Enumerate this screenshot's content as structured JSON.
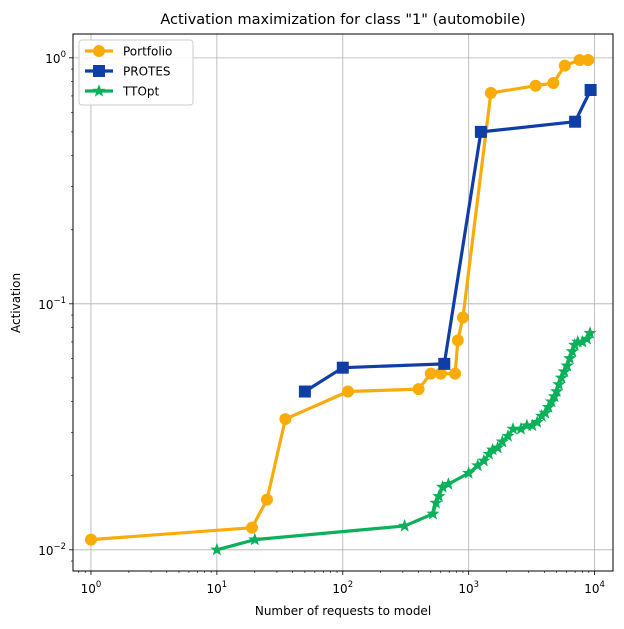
{
  "chart_data": {
    "type": "line",
    "title": "Activation maximization for class \"1\" (automobile)",
    "xlabel": "Number of requests to model",
    "ylabel": "Activation",
    "xscale": "log",
    "yscale": "log",
    "xlim": [
      0.72,
      14000
    ],
    "ylim": [
      0.0082,
      1.25
    ],
    "grid": true,
    "legend_position": "top-left",
    "x_ticks": [
      {
        "value": 1,
        "base": "10",
        "exp": "0"
      },
      {
        "value": 10,
        "base": "10",
        "exp": "1"
      },
      {
        "value": 100,
        "base": "10",
        "exp": "2"
      },
      {
        "value": 1000,
        "base": "10",
        "exp": "3"
      },
      {
        "value": 10000,
        "base": "10",
        "exp": "4"
      }
    ],
    "y_ticks": [
      {
        "value": 0.01,
        "base": "10",
        "exp": "−2"
      },
      {
        "value": 0.1,
        "base": "10",
        "exp": "−1"
      },
      {
        "value": 1,
        "base": "10",
        "exp": "0"
      }
    ],
    "series": [
      {
        "name": "Portfolio",
        "color": "#f9ac09",
        "marker": "circle",
        "points": [
          [
            1,
            0.011
          ],
          [
            19,
            0.0123
          ],
          [
            25,
            0.016
          ],
          [
            35,
            0.034
          ],
          [
            110,
            0.044
          ],
          [
            400,
            0.045
          ],
          [
            500,
            0.052
          ],
          [
            600,
            0.052
          ],
          [
            780,
            0.052
          ],
          [
            820,
            0.071
          ],
          [
            900,
            0.088
          ],
          [
            1500,
            0.72
          ],
          [
            3400,
            0.77
          ],
          [
            4700,
            0.79
          ],
          [
            5800,
            0.93
          ],
          [
            7600,
            0.98
          ],
          [
            8900,
            0.98
          ]
        ]
      },
      {
        "name": "PROTES",
        "color": "#0f3fa6",
        "marker": "square",
        "points": [
          [
            50,
            0.044
          ],
          [
            100,
            0.055
          ],
          [
            640,
            0.057
          ],
          [
            1250,
            0.5
          ],
          [
            7000,
            0.55
          ],
          [
            9300,
            0.74
          ]
        ]
      },
      {
        "name": "TTOpt",
        "color": "#0bb05a",
        "marker": "star",
        "points": [
          [
            10,
            0.01
          ],
          [
            20,
            0.011
          ],
          [
            310,
            0.0125
          ],
          [
            520,
            0.014
          ],
          [
            550,
            0.0155
          ],
          [
            580,
            0.0165
          ],
          [
            620,
            0.018
          ],
          [
            690,
            0.0185
          ],
          [
            1000,
            0.0205
          ],
          [
            1180,
            0.022
          ],
          [
            1320,
            0.023
          ],
          [
            1450,
            0.0245
          ],
          [
            1550,
            0.0255
          ],
          [
            1700,
            0.026
          ],
          [
            1850,
            0.0275
          ],
          [
            2050,
            0.029
          ],
          [
            2250,
            0.031
          ],
          [
            2600,
            0.031
          ],
          [
            2900,
            0.032
          ],
          [
            3200,
            0.032
          ],
          [
            3500,
            0.033
          ],
          [
            3800,
            0.035
          ],
          [
            4050,
            0.036
          ],
          [
            4300,
            0.038
          ],
          [
            4550,
            0.04
          ],
          [
            4800,
            0.042
          ],
          [
            5000,
            0.044
          ],
          [
            5200,
            0.047
          ],
          [
            5450,
            0.05
          ],
          [
            5750,
            0.053
          ],
          [
            6050,
            0.056
          ],
          [
            6350,
            0.06
          ],
          [
            6650,
            0.064
          ],
          [
            6950,
            0.068
          ],
          [
            7350,
            0.07
          ],
          [
            8000,
            0.07
          ],
          [
            8700,
            0.072
          ],
          [
            9200,
            0.076
          ]
        ]
      }
    ]
  }
}
